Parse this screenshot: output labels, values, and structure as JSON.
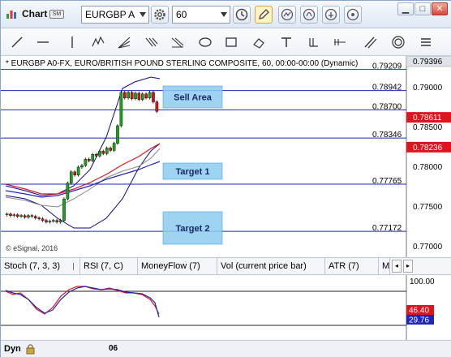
{
  "window": {
    "title": "Chart",
    "badge": "SM",
    "min": "▁",
    "max": "□",
    "close": "✕"
  },
  "toolbar": {
    "symbol": "EURGBP A",
    "interval": "60"
  },
  "chart": {
    "header": "* EURGBP A0-FX, EURO/BRITISH POUND STERLING COMPOSITE, 60, 00:00-00:00 (Dynamic)",
    "copyright": "© eSignal, 2016",
    "levels": [
      "0.79209",
      "0.78942",
      "0.78700",
      "0.78346",
      "0.77765",
      "0.77172"
    ],
    "axis_ticks": [
      "0.79000",
      "0.78500",
      "0.78000",
      "0.77500",
      "0.77000"
    ],
    "top_label": "0.79396",
    "price_labels": [
      "0.78611",
      "0.78236"
    ],
    "zones": [
      "Sell Area",
      "Target 1",
      "Target 2"
    ],
    "colors": {
      "red": "#e0141e",
      "blue": "#1d26b8",
      "zone": "#8ecbf0",
      "bull": "#1aa31a",
      "bear": "#d4141a"
    }
  },
  "indicators": {
    "tabs": [
      "Stoch (7, 3, 3)",
      "RSI (7, C)",
      "MoneyFlow (7)",
      "Vol (current price bar)",
      "ATR (7)",
      "M"
    ]
  },
  "stoch": {
    "axis": "100.00",
    "value1": "46.40",
    "value2": "29.76"
  },
  "bottom": {
    "mode": "Dyn",
    "date": "06"
  }
}
